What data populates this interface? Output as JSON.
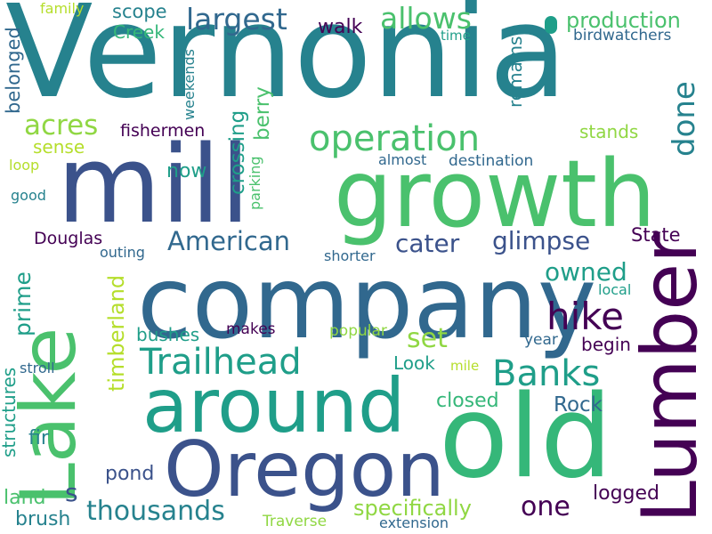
{
  "colors": {
    "background": "#ffffff",
    "deep_purple": "#440154",
    "dark_blue": "#3b528b",
    "steel_blue": "#31688e",
    "teal_blue": "#26828e",
    "teal": "#1f9e89",
    "mid_green": "#35b779",
    "green": "#4ac16d",
    "lime": "#90d743",
    "yellow_green": "#b5de2b"
  },
  "words": [
    "Vernonia",
    "mill",
    "growth",
    "company",
    "Lake",
    "old",
    "around",
    "Oregon",
    "Lumber",
    "operation",
    "largest",
    "allows",
    "done",
    "production",
    "birdwatchers",
    "remains",
    "scope",
    "walk",
    "Creek",
    "family",
    "belonged",
    "weekends",
    "time",
    "acres",
    "berry",
    "fishermen",
    "crossing",
    "sense",
    "stands",
    "loop",
    "almost",
    "destination",
    "good",
    "parking",
    "now",
    "American",
    "cater",
    "glimpse",
    "State",
    "Douglas",
    "outing",
    "shorter",
    "owned",
    "prime",
    "timberland",
    "hike",
    "local",
    "set",
    "Trailhead",
    "Banks",
    "bushes",
    "makes",
    "popular",
    "year",
    "begin",
    "stroll",
    "Look",
    "mile",
    "structures",
    "closed",
    "Rock",
    "fir",
    "pond",
    "s",
    "land",
    "thousands",
    "logged",
    "specifically",
    "one",
    "brush",
    "Traverse",
    "extension"
  ]
}
